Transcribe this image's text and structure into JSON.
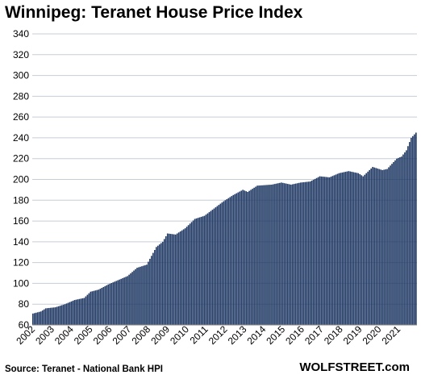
{
  "chart_data": {
    "type": "bar",
    "title": "Winnipeg: Teranet House Price Index",
    "source": "Source: Teranet - National Bank HPI",
    "brand": "WOLFSTREET.com",
    "xlabel": "",
    "ylabel": "",
    "ylim": [
      60,
      340
    ],
    "yticks": [
      60,
      80,
      100,
      120,
      140,
      160,
      180,
      200,
      220,
      240,
      260,
      280,
      300,
      320,
      340
    ],
    "grid": true,
    "legend": "none",
    "bar_color": "#1f3864",
    "x_start": "2002-01",
    "x_end": "2022-01",
    "x_tick_labels": [
      "2002",
      "2003",
      "2004",
      "2005",
      "2006",
      "2007",
      "2008",
      "2009",
      "2010",
      "2011",
      "2012",
      "2013",
      "2014",
      "2015",
      "2016",
      "2017",
      "2018",
      "2019",
      "2020",
      "2021"
    ],
    "series_anchors": [
      [
        "2002-01",
        71
      ],
      [
        "2002-06",
        73
      ],
      [
        "2002-09",
        76
      ],
      [
        "2003-03",
        77
      ],
      [
        "2003-09",
        80
      ],
      [
        "2004-03",
        84
      ],
      [
        "2004-09",
        86
      ],
      [
        "2005-01",
        92
      ],
      [
        "2005-06",
        94
      ],
      [
        "2005-12",
        99
      ],
      [
        "2006-06",
        103
      ],
      [
        "2006-12",
        107
      ],
      [
        "2007-06",
        115
      ],
      [
        "2007-12",
        118
      ],
      [
        "2008-06",
        135
      ],
      [
        "2008-10",
        140
      ],
      [
        "2009-01",
        148
      ],
      [
        "2009-06",
        147
      ],
      [
        "2009-12",
        153
      ],
      [
        "2010-06",
        162
      ],
      [
        "2010-12",
        165
      ],
      [
        "2011-06",
        172
      ],
      [
        "2011-12",
        179
      ],
      [
        "2012-06",
        185
      ],
      [
        "2012-12",
        190
      ],
      [
        "2013-03",
        188
      ],
      [
        "2013-09",
        194
      ],
      [
        "2014-06",
        195
      ],
      [
        "2014-12",
        197
      ],
      [
        "2015-06",
        195
      ],
      [
        "2015-12",
        197
      ],
      [
        "2016-06",
        198
      ],
      [
        "2016-12",
        203
      ],
      [
        "2017-06",
        202
      ],
      [
        "2017-12",
        206
      ],
      [
        "2018-06",
        208
      ],
      [
        "2018-12",
        206
      ],
      [
        "2019-03",
        203
      ],
      [
        "2019-09",
        212
      ],
      [
        "2020-03",
        209
      ],
      [
        "2020-06",
        210
      ],
      [
        "2020-12",
        220
      ],
      [
        "2021-03",
        222
      ],
      [
        "2021-06",
        228
      ],
      [
        "2021-09",
        240
      ],
      [
        "2021-12",
        245
      ]
    ]
  }
}
